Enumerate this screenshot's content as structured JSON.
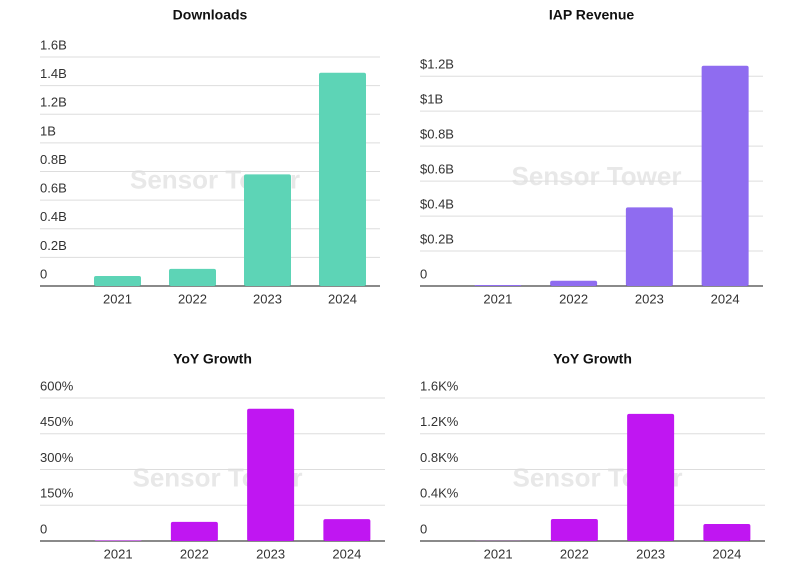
{
  "chart_data": [
    {
      "type": "bar",
      "title": "Downloads",
      "watermark": "Sensor Tower",
      "categories": [
        "2021",
        "2022",
        "2023",
        "2024"
      ],
      "values": [
        0.07,
        0.12,
        0.78,
        1.49
      ],
      "color": "#5dd4b6",
      "ylim": [
        0,
        1.6
      ],
      "yticks": [
        0,
        {
          "value": 0.2,
          "label": "0.2B"
        },
        {
          "value": 0.4,
          "label": "0.4B"
        },
        {
          "value": 0.6,
          "label": "0.6B"
        },
        {
          "value": 0.8,
          "label": "0.8B"
        },
        {
          "value": 1,
          "label": "1B"
        },
        {
          "value": 1.2,
          "label": "1.2B"
        },
        {
          "value": 1.4,
          "label": "1.4B"
        },
        {
          "value": 1.6,
          "label": "1.6B"
        }
      ],
      "grid": true
    },
    {
      "type": "bar",
      "title": "IAP Revenue",
      "watermark": "Sensor Tower",
      "categories": [
        "2021",
        "2022",
        "2023",
        "2024"
      ],
      "values": [
        0.006,
        0.03,
        0.45,
        1.26
      ],
      "color": "#8f6cf0",
      "ylim": [
        0,
        1.35
      ],
      "yticks": [
        0,
        {
          "value": 0.2,
          "label": "$0.2B"
        },
        {
          "value": 0.4,
          "label": "$0.4B"
        },
        {
          "value": 0.6,
          "label": "$0.6B"
        },
        {
          "value": 0.8,
          "label": "$0.8B"
        },
        {
          "value": 1,
          "label": "$1B"
        },
        {
          "value": 1.2,
          "label": "$1.2B"
        }
      ],
      "grid": true
    },
    {
      "type": "bar",
      "title": "YoY Growth",
      "watermark": "Sensor Tower",
      "categories": [
        "2021",
        "2022",
        "2023",
        "2024"
      ],
      "values": [
        2,
        80,
        555,
        92
      ],
      "color": "#c016f2",
      "ylim": [
        0,
        600
      ],
      "yticks": [
        0,
        {
          "value": 150,
          "label": "150%"
        },
        {
          "value": 300,
          "label": "300%"
        },
        {
          "value": 450,
          "label": "450%"
        },
        {
          "value": 600,
          "label": "600%"
        }
      ],
      "grid": true
    },
    {
      "type": "bar",
      "title": "YoY Growth",
      "watermark": "Sensor Tower",
      "categories": [
        "2021",
        "2022",
        "2023",
        "2024"
      ],
      "values": [
        1,
        246,
        1423,
        190
      ],
      "color": "#c016f2",
      "ylim": [
        0,
        1600
      ],
      "yticks": [
        0,
        {
          "value": 400,
          "label": "0.4K%"
        },
        {
          "value": 800,
          "label": "0.8K%"
        },
        {
          "value": 1200,
          "label": "1.2K%"
        },
        {
          "value": 1600,
          "label": "1.6K%"
        }
      ],
      "grid": true
    }
  ]
}
